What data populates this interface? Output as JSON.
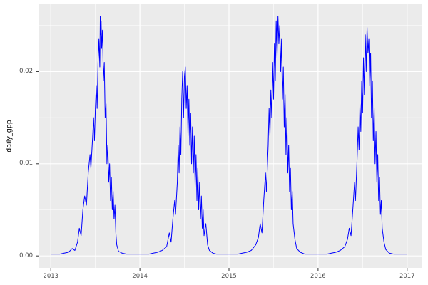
{
  "chart_data": {
    "type": "line",
    "title": "",
    "xlabel": "",
    "ylabel": "daily_gpp",
    "legend": "none",
    "grid": {
      "major": true,
      "minor": true
    },
    "xlim": [
      2012.87,
      2017.17
    ],
    "ylim": [
      -0.0013,
      0.0273
    ],
    "x_ticks": [
      2013,
      2014,
      2015,
      2016,
      2017
    ],
    "x_tick_labels": [
      "2013",
      "2014",
      "2015",
      "2016",
      "2017"
    ],
    "x_minor_ticks": [
      2013.5,
      2014.5,
      2015.5,
      2016.5
    ],
    "y_ticks": [
      0,
      0.01,
      0.02
    ],
    "y_tick_labels": [
      "0.00",
      "0.01",
      "0.02"
    ],
    "y_minor_ticks": [
      0.005,
      0.015,
      0.025
    ],
    "style": {
      "figure_bg": "#FFFFFF",
      "panel_bg": "#EBEBEB",
      "grid_major": "#FFFFFF",
      "grid_minor": "#FFFFFF",
      "line_color": "#0000FF",
      "tick_color": "#333333",
      "tick_label_color": "#4D4D4D",
      "axis_title_color": "#000000"
    },
    "series": [
      {
        "name": "daily_gpp",
        "x": [
          2013.0,
          2013.05,
          2013.1,
          2013.15,
          2013.2,
          2013.24,
          2013.27,
          2013.3,
          2013.32,
          2013.34,
          2013.36,
          2013.38,
          2013.4,
          2013.42,
          2013.44,
          2013.45,
          2013.47,
          2013.48,
          2013.49,
          2013.5,
          2013.51,
          2013.52,
          2013.53,
          2013.54,
          2013.55,
          2013.555,
          2013.56,
          2013.565,
          2013.57,
          2013.58,
          2013.59,
          2013.6,
          2013.61,
          2013.62,
          2013.63,
          2013.64,
          2013.65,
          2013.66,
          2013.67,
          2013.68,
          2013.69,
          2013.7,
          2013.71,
          2013.72,
          2013.73,
          2013.74,
          2013.76,
          2013.8,
          2013.85,
          2013.9,
          2013.95,
          2014.0,
          2014.05,
          2014.1,
          2014.15,
          2014.2,
          2014.25,
          2014.3,
          2014.33,
          2014.35,
          2014.37,
          2014.39,
          2014.4,
          2014.42,
          2014.43,
          2014.44,
          2014.45,
          2014.46,
          2014.47,
          2014.48,
          2014.49,
          2014.5,
          2014.51,
          2014.52,
          2014.53,
          2014.54,
          2014.55,
          2014.56,
          2014.57,
          2014.58,
          2014.59,
          2014.6,
          2014.61,
          2014.62,
          2014.63,
          2014.64,
          2014.65,
          2014.66,
          2014.67,
          2014.68,
          2014.69,
          2014.7,
          2014.71,
          2014.72,
          2014.74,
          2014.76,
          2014.78,
          2014.82,
          2014.86,
          2014.9,
          2014.95,
          2015.0,
          2015.05,
          2015.1,
          2015.15,
          2015.2,
          2015.25,
          2015.3,
          2015.33,
          2015.35,
          2015.37,
          2015.39,
          2015.41,
          2015.42,
          2015.44,
          2015.45,
          2015.46,
          2015.47,
          2015.48,
          2015.49,
          2015.5,
          2015.51,
          2015.52,
          2015.53,
          2015.54,
          2015.55,
          2015.56,
          2015.57,
          2015.58,
          2015.59,
          2015.6,
          2015.61,
          2015.62,
          2015.63,
          2015.64,
          2015.65,
          2015.66,
          2015.67,
          2015.68,
          2015.69,
          2015.7,
          2015.71,
          2015.72,
          2015.74,
          2015.76,
          2015.8,
          2015.85,
          2015.9,
          2015.95,
          2016.0,
          2016.05,
          2016.1,
          2016.15,
          2016.2,
          2016.25,
          2016.3,
          2016.33,
          2016.35,
          2016.37,
          2016.39,
          2016.41,
          2016.42,
          2016.44,
          2016.45,
          2016.46,
          2016.47,
          2016.48,
          2016.49,
          2016.5,
          2016.51,
          2016.52,
          2016.53,
          2016.54,
          2016.55,
          2016.56,
          2016.57,
          2016.58,
          2016.59,
          2016.6,
          2016.61,
          2016.62,
          2016.63,
          2016.64,
          2016.65,
          2016.66,
          2016.67,
          2016.68,
          2016.69,
          2016.7,
          2016.71,
          2016.72,
          2016.74,
          2016.76,
          2016.8,
          2016.85,
          2016.9,
          2016.95,
          2017.0
        ],
        "y": [
          0.0002,
          0.0002,
          0.0002,
          0.0003,
          0.0004,
          0.0008,
          0.0006,
          0.0015,
          0.003,
          0.0022,
          0.005,
          0.0065,
          0.0055,
          0.009,
          0.011,
          0.0095,
          0.013,
          0.015,
          0.0125,
          0.016,
          0.0185,
          0.016,
          0.021,
          0.0235,
          0.0205,
          0.026,
          0.024,
          0.0255,
          0.0225,
          0.0245,
          0.019,
          0.021,
          0.015,
          0.0165,
          0.01,
          0.012,
          0.008,
          0.01,
          0.006,
          0.0085,
          0.005,
          0.007,
          0.004,
          0.0055,
          0.0025,
          0.0012,
          0.0005,
          0.0003,
          0.0002,
          0.0002,
          0.0002,
          0.0002,
          0.0002,
          0.0002,
          0.0003,
          0.0004,
          0.0006,
          0.001,
          0.0025,
          0.0015,
          0.004,
          0.006,
          0.0045,
          0.008,
          0.012,
          0.009,
          0.014,
          0.011,
          0.017,
          0.02,
          0.015,
          0.0195,
          0.0205,
          0.016,
          0.0185,
          0.013,
          0.017,
          0.012,
          0.0155,
          0.01,
          0.014,
          0.009,
          0.013,
          0.0075,
          0.011,
          0.006,
          0.0095,
          0.005,
          0.008,
          0.004,
          0.0065,
          0.003,
          0.005,
          0.0022,
          0.0035,
          0.0012,
          0.0006,
          0.0003,
          0.0002,
          0.0002,
          0.0002,
          0.0002,
          0.0002,
          0.0002,
          0.0003,
          0.0004,
          0.0006,
          0.0012,
          0.002,
          0.0035,
          0.0025,
          0.006,
          0.009,
          0.007,
          0.012,
          0.016,
          0.013,
          0.018,
          0.015,
          0.021,
          0.017,
          0.023,
          0.019,
          0.0255,
          0.0215,
          0.026,
          0.023,
          0.025,
          0.02,
          0.0235,
          0.017,
          0.0205,
          0.014,
          0.0175,
          0.011,
          0.015,
          0.009,
          0.012,
          0.007,
          0.0095,
          0.005,
          0.007,
          0.0035,
          0.0018,
          0.0008,
          0.0004,
          0.0002,
          0.0002,
          0.0002,
          0.0002,
          0.0002,
          0.0002,
          0.0003,
          0.0004,
          0.0006,
          0.001,
          0.0018,
          0.003,
          0.0022,
          0.005,
          0.008,
          0.006,
          0.011,
          0.014,
          0.0115,
          0.0165,
          0.0135,
          0.019,
          0.0155,
          0.0215,
          0.0175,
          0.024,
          0.02,
          0.0248,
          0.022,
          0.0235,
          0.0185,
          0.022,
          0.015,
          0.019,
          0.0125,
          0.016,
          0.01,
          0.0135,
          0.008,
          0.011,
          0.006,
          0.0085,
          0.0045,
          0.006,
          0.003,
          0.0015,
          0.0007,
          0.0003,
          0.0002,
          0.0002,
          0.0002,
          0.0002
        ]
      }
    ]
  }
}
